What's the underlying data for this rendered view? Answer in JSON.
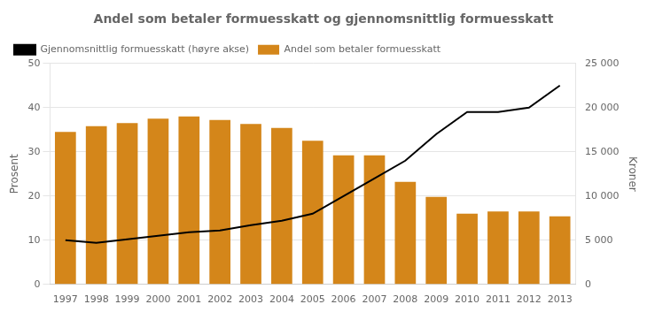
{
  "chart_data": {
    "type": "bar",
    "title": "Andel som betaler formuesskatt og gjennomsnittlig formuesskatt",
    "ylabel": "Prosent",
    "y2label": "Kroner",
    "categories": [
      1997,
      1998,
      1999,
      2000,
      2001,
      2002,
      2003,
      2004,
      2005,
      2006,
      2007,
      2008,
      2009,
      2010,
      2011,
      2012,
      2013
    ],
    "series": [
      {
        "name": "Andel som betaler formuesskatt",
        "type": "bar",
        "color": "#D4861A",
        "values": [
          34.5,
          35.8,
          36.5,
          37.5,
          38.0,
          37.2,
          36.3,
          35.4,
          32.5,
          29.2,
          29.2,
          23.2,
          19.8,
          16.0,
          16.5,
          16.5,
          15.4
        ]
      },
      {
        "name": "Gjennomsnittlig formuesskatt (høyre akse)",
        "type": "line",
        "color": "#000000",
        "axis": "y2",
        "values": [
          5000,
          4700,
          5100,
          5500,
          5900,
          6100,
          6700,
          7200,
          8000,
          10000,
          12000,
          14000,
          17000,
          19500,
          19500,
          20000,
          22500
        ]
      }
    ],
    "ylim": [
      0,
      50
    ],
    "yticks": [
      0,
      10,
      20,
      30,
      40,
      50
    ],
    "y2lim": [
      0,
      25000
    ],
    "y2ticks": [
      0,
      {
        "value": 5000,
        "label": "5 000"
      },
      {
        "value": 10000,
        "label": "10 000"
      },
      {
        "value": 15000,
        "label": "15 000"
      },
      {
        "value": 20000,
        "label": "20 000"
      },
      {
        "value": 25000,
        "label": "25 000"
      }
    ],
    "grid": true,
    "legend": "upper left"
  }
}
